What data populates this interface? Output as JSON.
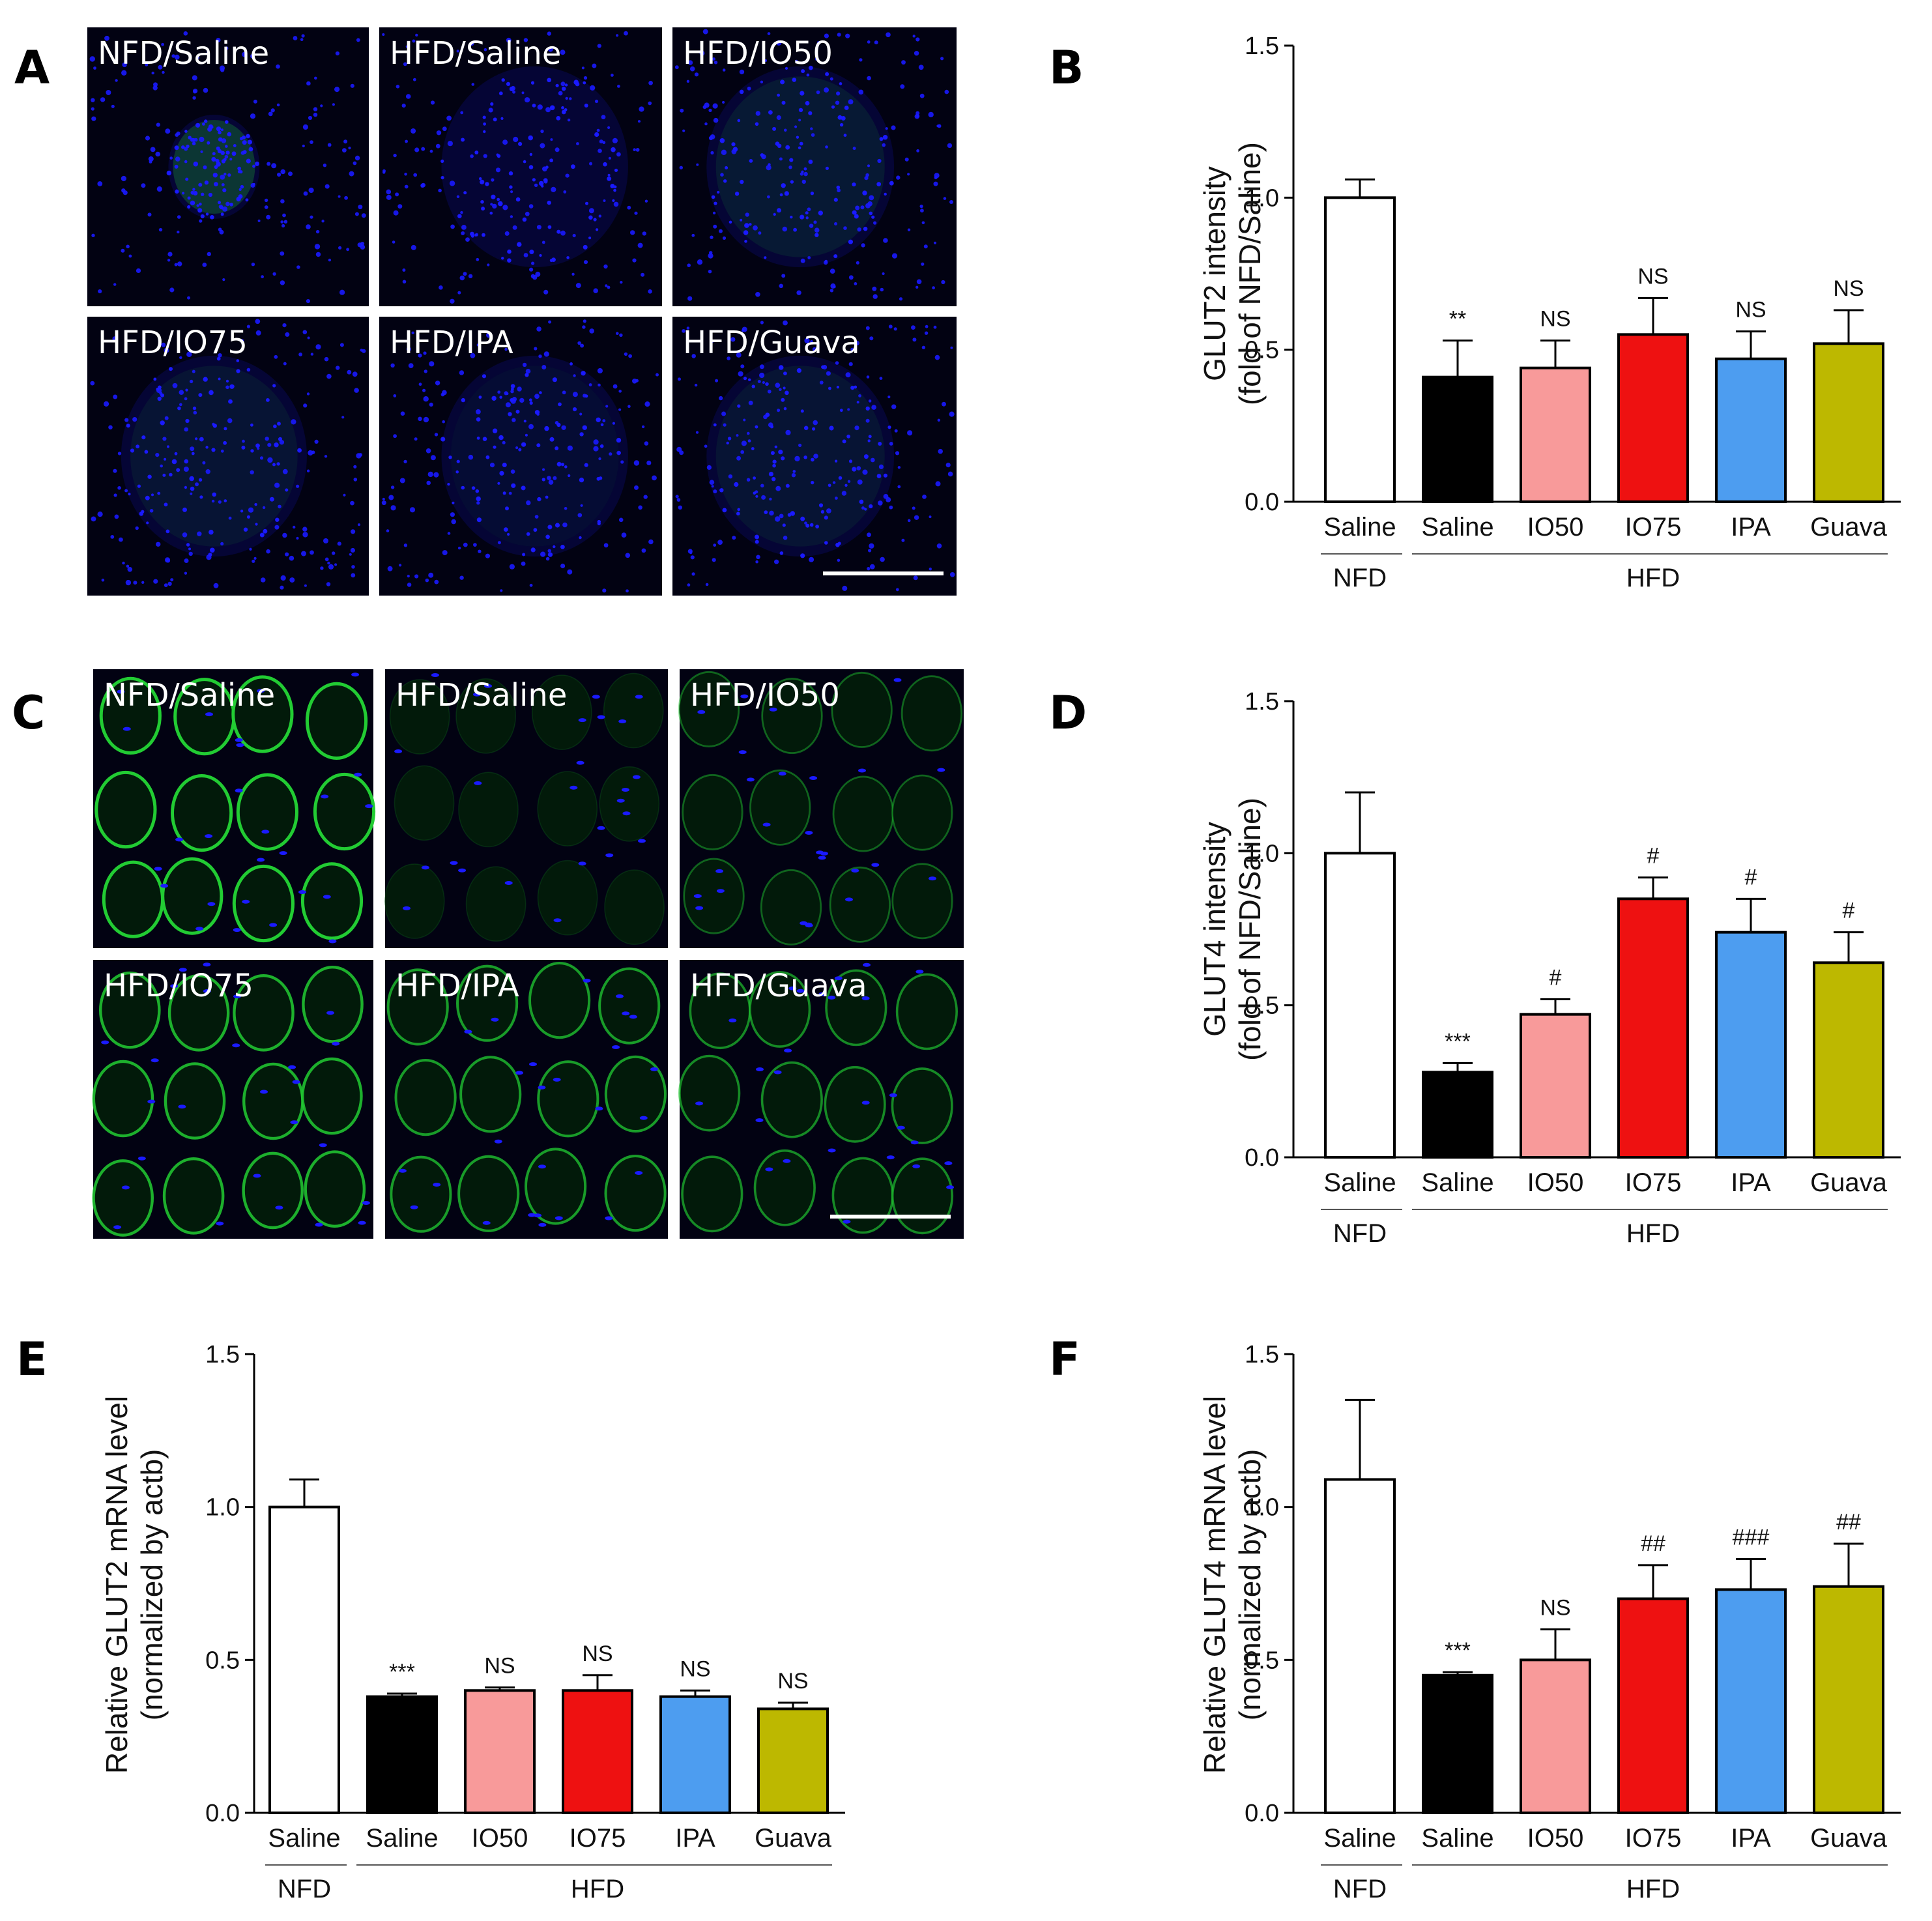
{
  "panel_letters": {
    "A": "A",
    "B": "B",
    "C": "C",
    "D": "D",
    "E": "E",
    "F": "F"
  },
  "micrographs": {
    "A": {
      "style": "islet",
      "labels": [
        "NFD/Saline",
        "HFD/Saline",
        "HFD/IO50",
        "HFD/IO75",
        "HFD/IPA",
        "HFD/Guava"
      ],
      "green_levels": [
        0.9,
        0.05,
        0.35,
        0.3,
        0.15,
        0.3
      ],
      "scale_bar_color": "#ffffff"
    },
    "C": {
      "style": "muscle",
      "labels": [
        "NFD/Saline",
        "HFD/Saline",
        "HFD/IO50",
        "HFD/IO75",
        "HFD/IPA",
        "HFD/Guava"
      ],
      "green_levels": [
        1.0,
        0.15,
        0.45,
        0.85,
        0.75,
        0.65
      ],
      "scale_bar_color": "#ffffff"
    }
  },
  "group_labels": {
    "nfd": "NFD",
    "hfd": "HFD"
  },
  "colors": {
    "Saline_NFD": "#ffffff",
    "Saline_HFD": "#000000",
    "IO50": "#f89a9a",
    "IO75": "#ee1111",
    "IPA": "#4d9df0",
    "Guava": "#bdb800",
    "image_nuclei": "#1a1aff",
    "image_green": "#22cc33"
  },
  "chart_data": [
    {
      "id": "B",
      "type": "bar",
      "ylabel": [
        "GLUT2 intensity",
        "(fold of NFD/Saline)"
      ],
      "categories": [
        "Saline",
        "Saline",
        "IO50",
        "IO75",
        "IPA",
        "Guava"
      ],
      "values": [
        1.0,
        0.41,
        0.44,
        0.55,
        0.47,
        0.52
      ],
      "errors": [
        0.06,
        0.12,
        0.09,
        0.12,
        0.09,
        0.11
      ],
      "annotations": [
        "",
        "**",
        "NS",
        "NS",
        "NS",
        "NS"
      ],
      "ylim": [
        0,
        1.5
      ],
      "yticks": [
        "0.0",
        "0.5",
        "1.0",
        "1.5"
      ]
    },
    {
      "id": "D",
      "type": "bar",
      "ylabel": [
        "GLUT4 intensity",
        "(fold of NFD/Saline)"
      ],
      "categories": [
        "Saline",
        "Saline",
        "IO50",
        "IO75",
        "IPA",
        "Guava"
      ],
      "values": [
        1.0,
        0.28,
        0.47,
        0.85,
        0.74,
        0.64
      ],
      "errors": [
        0.2,
        0.03,
        0.05,
        0.07,
        0.11,
        0.1
      ],
      "annotations": [
        "",
        "***",
        "#",
        "#",
        "#",
        "#"
      ],
      "ylim": [
        0,
        1.5
      ],
      "yticks": [
        "0.0",
        "0.5",
        "1.0",
        "1.5"
      ]
    },
    {
      "id": "E",
      "type": "bar",
      "ylabel": [
        "Relative GLUT2 mRNA level",
        "(normalized by actb)"
      ],
      "categories": [
        "Saline",
        "Saline",
        "IO50",
        "IO75",
        "IPA",
        "Guava"
      ],
      "values": [
        1.0,
        0.38,
        0.4,
        0.4,
        0.38,
        0.34
      ],
      "errors": [
        0.09,
        0.01,
        0.01,
        0.05,
        0.02,
        0.02
      ],
      "annotations": [
        "",
        "***",
        "NS",
        "NS",
        "NS",
        "NS"
      ],
      "ylim": [
        0,
        1.5
      ],
      "yticks": [
        "0.0",
        "0.5",
        "1.0",
        "1.5"
      ]
    },
    {
      "id": "F",
      "type": "bar",
      "ylabel": [
        "Relative GLUT4 mRNA level",
        "(normalized by actb)"
      ],
      "categories": [
        "Saline",
        "Saline",
        "IO50",
        "IO75",
        "IPA",
        "Guava"
      ],
      "values": [
        1.09,
        0.45,
        0.5,
        0.7,
        0.73,
        0.74
      ],
      "errors": [
        0.26,
        0.01,
        0.1,
        0.11,
        0.1,
        0.14
      ],
      "annotations": [
        "",
        "***",
        "NS",
        "##",
        "###",
        "##"
      ],
      "ylim": [
        0,
        1.5
      ],
      "yticks": [
        "0.0",
        "0.5",
        "1.0",
        "1.5"
      ]
    }
  ]
}
